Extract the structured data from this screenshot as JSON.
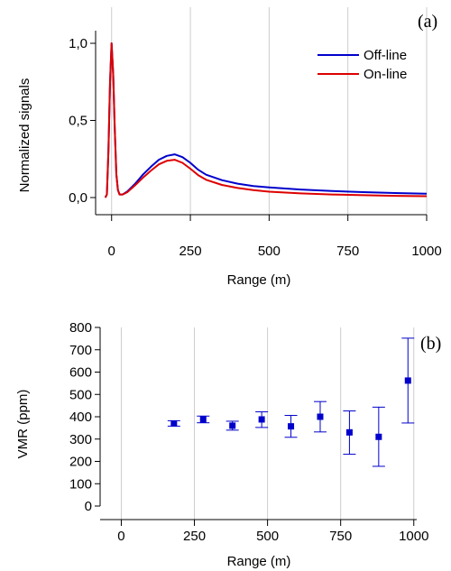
{
  "chart_data": [
    {
      "type": "line",
      "panel_label": "(a)",
      "xlabel": "Range (m)",
      "ylabel": "Normalized signals",
      "xlim": [
        -25,
        1000
      ],
      "ylim": [
        -0.1,
        1.12
      ],
      "xticks": [
        0,
        250,
        500,
        750,
        1000
      ],
      "xtick_labels": [
        "0",
        "250",
        "500",
        "750",
        "1000"
      ],
      "yticks": [
        0.0,
        0.5,
        1.0
      ],
      "ytick_labels": [
        "0,0",
        "0,5",
        "1,0"
      ],
      "grid": true,
      "legend_position": "top-right",
      "series": [
        {
          "name": "Off-line",
          "color": "#0000cc",
          "x": [
            -20,
            -15,
            -10,
            -5,
            0,
            5,
            10,
            15,
            20,
            25,
            35,
            50,
            75,
            100,
            125,
            150,
            175,
            200,
            225,
            250,
            275,
            300,
            350,
            400,
            450,
            500,
            600,
            700,
            800,
            900,
            1000
          ],
          "y": [
            0.0,
            0.02,
            0.3,
            0.75,
            1.0,
            0.8,
            0.45,
            0.15,
            0.05,
            0.02,
            0.02,
            0.04,
            0.09,
            0.15,
            0.2,
            0.245,
            0.27,
            0.28,
            0.262,
            0.225,
            0.18,
            0.148,
            0.113,
            0.09,
            0.075,
            0.066,
            0.052,
            0.042,
            0.035,
            0.029,
            0.025
          ]
        },
        {
          "name": "On-line",
          "color": "#dd0000",
          "x": [
            -20,
            -15,
            -10,
            -5,
            0,
            5,
            10,
            15,
            20,
            25,
            35,
            50,
            75,
            100,
            125,
            150,
            175,
            200,
            225,
            250,
            275,
            300,
            350,
            400,
            450,
            500,
            600,
            700,
            800,
            900,
            1000
          ],
          "y": [
            0.0,
            0.02,
            0.3,
            0.75,
            1.0,
            0.8,
            0.45,
            0.15,
            0.05,
            0.02,
            0.02,
            0.035,
            0.08,
            0.13,
            0.175,
            0.215,
            0.238,
            0.245,
            0.225,
            0.187,
            0.145,
            0.115,
            0.082,
            0.062,
            0.048,
            0.038,
            0.027,
            0.02,
            0.015,
            0.011,
            0.009
          ]
        }
      ]
    },
    {
      "type": "scatter",
      "panel_label": "(b)",
      "xlabel": "Range (m)",
      "ylabel": "VMR (ppm)",
      "xlim": [
        -60,
        1010
      ],
      "ylim": [
        0,
        800
      ],
      "xticks": [
        0,
        250,
        500,
        750,
        1000
      ],
      "xtick_labels": [
        "0",
        "250",
        "500",
        "750",
        "1000"
      ],
      "yticks": [
        0,
        100,
        200,
        300,
        400,
        500,
        600,
        700,
        800
      ],
      "ytick_labels": [
        "0",
        "100",
        "200",
        "300",
        "400",
        "500",
        "600",
        "700",
        "800"
      ],
      "grid": true,
      "color": "#0000cc",
      "points": [
        {
          "x": 180,
          "y": 370,
          "low": 358,
          "high": 382
        },
        {
          "x": 280,
          "y": 388,
          "low": 373,
          "high": 403
        },
        {
          "x": 380,
          "y": 360,
          "low": 340,
          "high": 380
        },
        {
          "x": 480,
          "y": 388,
          "low": 352,
          "high": 422
        },
        {
          "x": 580,
          "y": 357,
          "low": 308,
          "high": 406
        },
        {
          "x": 680,
          "y": 400,
          "low": 332,
          "high": 468
        },
        {
          "x": 780,
          "y": 330,
          "low": 232,
          "high": 426
        },
        {
          "x": 880,
          "y": 310,
          "low": 178,
          "high": 443
        },
        {
          "x": 980,
          "y": 562,
          "low": 372,
          "high": 752
        }
      ]
    }
  ]
}
